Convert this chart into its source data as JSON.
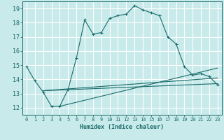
{
  "bg_color": "#c8eaea",
  "grid_color": "#ffffff",
  "line_color": "#1a6b6b",
  "xlabel": "Humidex (Indice chaleur)",
  "xlim": [
    -0.5,
    23.5
  ],
  "ylim": [
    11.5,
    19.5
  ],
  "yticks": [
    12,
    13,
    14,
    15,
    16,
    17,
    18,
    19
  ],
  "xticks": [
    0,
    1,
    2,
    3,
    4,
    5,
    6,
    7,
    8,
    9,
    10,
    11,
    12,
    13,
    14,
    15,
    16,
    17,
    18,
    19,
    20,
    21,
    22,
    23
  ],
  "curve1_x": [
    0,
    1,
    2,
    3,
    4,
    5,
    6,
    7,
    8,
    9,
    10,
    11,
    12,
    13,
    14,
    15,
    16,
    17,
    18,
    19,
    20,
    21,
    22,
    23
  ],
  "curve1_y": [
    14.9,
    13.9,
    13.1,
    12.1,
    12.1,
    13.3,
    15.5,
    18.2,
    17.2,
    17.3,
    18.3,
    18.5,
    18.6,
    19.2,
    18.9,
    18.7,
    18.5,
    17.0,
    16.5,
    14.9,
    14.3,
    14.4,
    14.2,
    13.6
  ],
  "line1_x": [
    2,
    23
  ],
  "line1_y": [
    13.2,
    13.7
  ],
  "line2_x": [
    2,
    23
  ],
  "line2_y": [
    13.2,
    14.1
  ],
  "line3_x": [
    4,
    23
  ],
  "line3_y": [
    12.1,
    14.8
  ]
}
